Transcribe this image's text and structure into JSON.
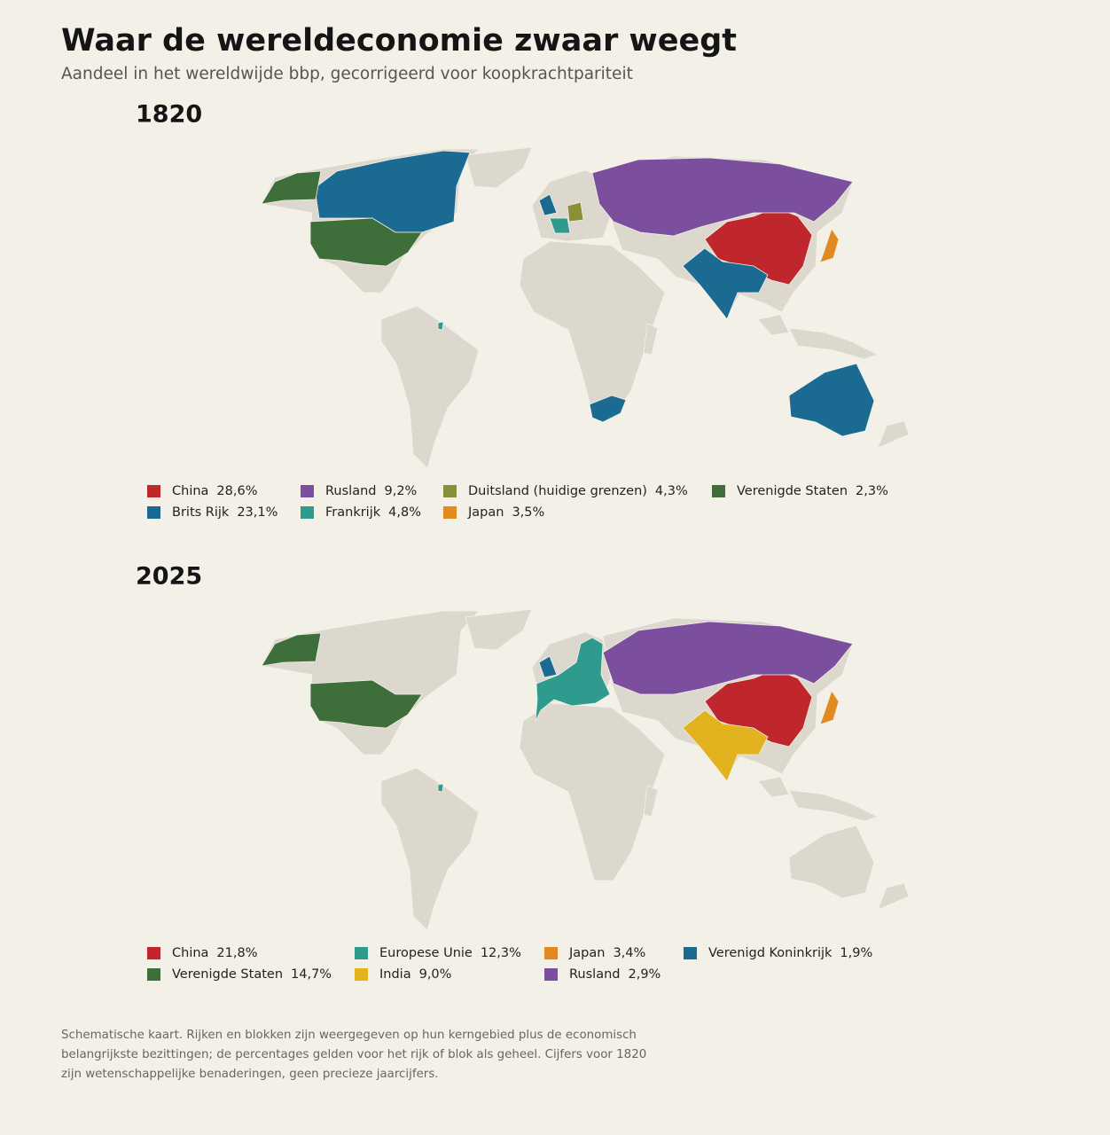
{
  "header": {
    "title": "Waar de wereldeconomie zwaar weegt",
    "subtitle": "Aandeel in het wereldwijde bbp, gecorrigeerd voor koopkrachtpariteit"
  },
  "chart_data": [
    {
      "type": "map",
      "title": "1820",
      "categories": [
        "China",
        "Brits Rijk",
        "Rusland",
        "Frankrijk",
        "Duitsland (huidige grenzen)",
        "Japan",
        "Verenigde Staten"
      ],
      "values": [
        28.6,
        23.1,
        9.2,
        4.8,
        4.3,
        3.5,
        2.3
      ],
      "value_labels": [
        "28,6%",
        "23,1%",
        "9,2%",
        "4,8%",
        "4,3%",
        "3,5%",
        "2,3%"
      ],
      "colors": [
        "#c0272d",
        "#1a6a92",
        "#7b4f9e",
        "#2e9b8e",
        "#8a8f3a",
        "#e08a20",
        "#3e6e3a"
      ]
    },
    {
      "type": "map",
      "title": "2025",
      "categories": [
        "China",
        "Verenigde Staten",
        "Europese Unie",
        "India",
        "Japan",
        "Rusland",
        "Verenigd Koninkrijk"
      ],
      "values": [
        21.8,
        14.7,
        12.3,
        9.0,
        3.4,
        2.9,
        1.9
      ],
      "value_labels": [
        "21,8%",
        "14,7%",
        "12,3%",
        "9,0%",
        "3,4%",
        "2,9%",
        "1,9%"
      ],
      "colors": [
        "#c0272d",
        "#3e6e3a",
        "#2e9b8e",
        "#e2b21f",
        "#e08a20",
        "#7b4f9e",
        "#1a6a92"
      ]
    }
  ],
  "footnote": "Schematische kaart. Rijken en blokken zijn weergegeven op hun kerngebied plus de economisch belangrijkste bezittingen; de percentages gelden voor het rijk of blok als geheel. Cijfers voor 1820 zijn wetenschappelijke benaderingen, geen precieze jaarcijfers."
}
